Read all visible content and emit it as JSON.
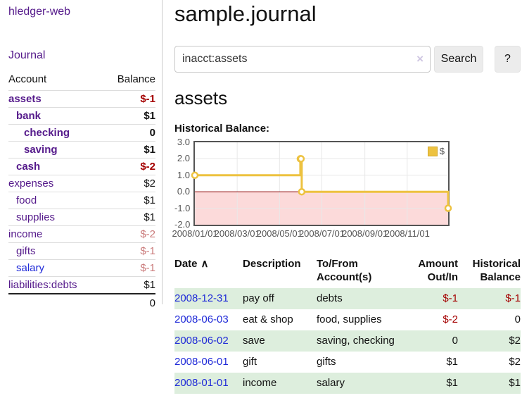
{
  "theme": {
    "link_purple": "#551a8b",
    "link_blue": "#1f2ad8",
    "negative_strong": "#a40000",
    "negative_soft": "#ca7a7a",
    "row_stripe_green": "#ddeedd",
    "series_yellow": "#edc240",
    "chart_border": "#545454",
    "chart_grid": "#e8e8e8",
    "chart_negative_fill": "#fcdada",
    "chart_zero_line": "#8b0000"
  },
  "sidebar": {
    "brand": "hledger-web",
    "nav_journal": "Journal",
    "accounts_table": {
      "headers": {
        "account": "Account",
        "balance": "Balance"
      },
      "rows": [
        {
          "name": "assets",
          "indent": 0,
          "balance": "$-1",
          "bold": true,
          "neg": "strong"
        },
        {
          "name": "bank",
          "indent": 1,
          "balance": "$1",
          "bold": true
        },
        {
          "name": "checking",
          "indent": 2,
          "balance": "0",
          "bold": true
        },
        {
          "name": "saving",
          "indent": 2,
          "balance": "$1",
          "bold": true
        },
        {
          "name": "cash",
          "indent": 1,
          "balance": "$-2",
          "bold": true,
          "neg": "strong"
        },
        {
          "name": "expenses",
          "indent": 0,
          "balance": "$2"
        },
        {
          "name": "food",
          "indent": 1,
          "balance": "$1"
        },
        {
          "name": "supplies",
          "indent": 1,
          "balance": "$1"
        },
        {
          "name": "income",
          "indent": 0,
          "balance": "$-2",
          "neg": "soft"
        },
        {
          "name": "gifts",
          "indent": 1,
          "balance": "$-1",
          "neg": "soft"
        },
        {
          "name": "salary",
          "indent": 1,
          "balance": "$-1",
          "neg": "soft",
          "link": "blue"
        },
        {
          "name": "liabilities:debts",
          "indent": 0,
          "balance": "$1"
        }
      ],
      "total": "0"
    }
  },
  "header": {
    "title": "sample.journal"
  },
  "search": {
    "value": "inacct:assets",
    "clear_icon": "×",
    "button_label": "Search",
    "help_label": "?"
  },
  "account_page": {
    "heading": "assets",
    "chart_title": "Historical Balance:"
  },
  "chart_data": {
    "type": "line",
    "title": "Historical Balance",
    "step": true,
    "series": [
      {
        "name": "$",
        "color": "#edc240",
        "points": [
          {
            "date": "2008-01-01",
            "day": 0,
            "value": 1
          },
          {
            "date": "2008-06-01",
            "day": 152,
            "value": 2
          },
          {
            "date": "2008-06-02",
            "day": 153,
            "value": 2
          },
          {
            "date": "2008-06-03",
            "day": 154,
            "value": 0
          },
          {
            "date": "2008-12-31",
            "day": 365,
            "value": -1
          }
        ]
      }
    ],
    "ylim": [
      -2,
      3
    ],
    "yticks": [
      {
        "label": "3.0",
        "value": 3
      },
      {
        "label": "2.0",
        "value": 2
      },
      {
        "label": "1.0",
        "value": 1
      },
      {
        "label": "0.0",
        "value": 0
      },
      {
        "label": "-1.0",
        "value": -1
      },
      {
        "label": "-2.0",
        "value": -2
      }
    ],
    "xticks": [
      {
        "label": "2008/01/01",
        "day": 0
      },
      {
        "label": "2008/03/01",
        "day": 61
      },
      {
        "label": "2008/05/01",
        "day": 122
      },
      {
        "label": "2008/07/01",
        "day": 183
      },
      {
        "label": "2008/09/01",
        "day": 245
      },
      {
        "label": "2008/11/01",
        "day": 306
      }
    ],
    "xrange_days": [
      0,
      365
    ],
    "legend": {
      "label": "$",
      "position": "top-right"
    },
    "grid": true,
    "negative_region": true
  },
  "register_table": {
    "headers": {
      "date": "Date",
      "sort_icon": "∧",
      "description": "Description",
      "accounts": "To/From Account(s)",
      "amount": "Amount Out/In",
      "balance": "Historical Balance"
    },
    "rows": [
      {
        "date": "2008-12-31",
        "description": "pay off",
        "accounts": "debts",
        "amount": "$-1",
        "balance": "$-1",
        "amount_neg": true,
        "balance_neg": true,
        "stripe": true
      },
      {
        "date": "2008-06-03",
        "description": "eat & shop",
        "accounts": "food, supplies",
        "amount": "$-2",
        "balance": "0",
        "amount_neg": true,
        "stripe": false
      },
      {
        "date": "2008-06-02",
        "description": "save",
        "accounts": "saving, checking",
        "amount": "0",
        "balance": "$2",
        "stripe": true
      },
      {
        "date": "2008-06-01",
        "description": "gift",
        "accounts": "gifts",
        "amount": "$1",
        "balance": "$2",
        "stripe": false
      },
      {
        "date": "2008-01-01",
        "description": "income",
        "accounts": "salary",
        "amount": "$1",
        "balance": "$1",
        "stripe": true
      }
    ]
  }
}
